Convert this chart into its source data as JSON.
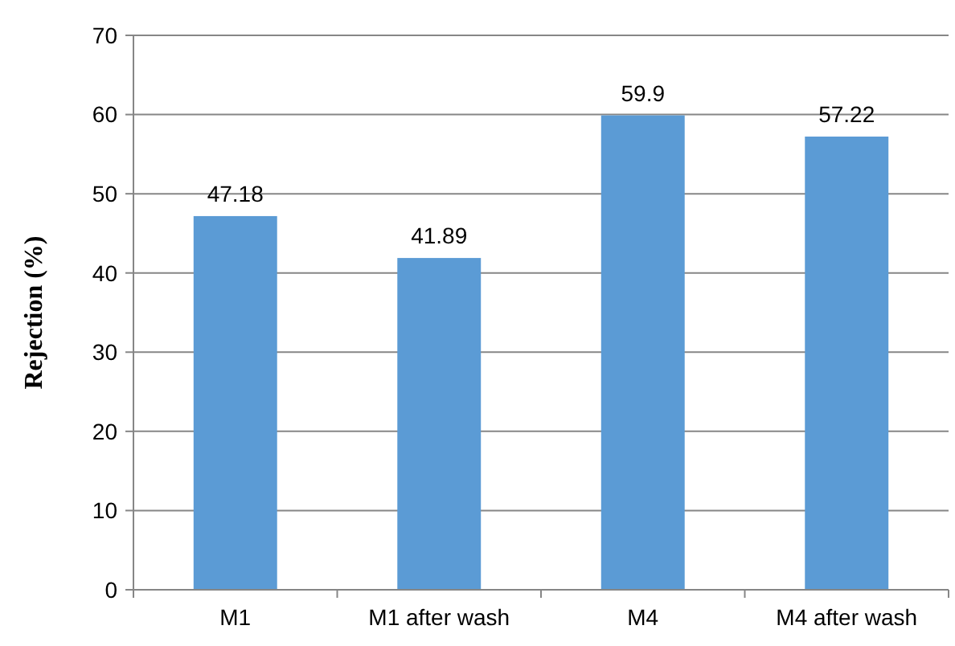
{
  "chart_data": {
    "type": "bar",
    "ylabel": "Rejection (%)",
    "categories": [
      "M1",
      "M1 after wash",
      "M4",
      "M4 after wash"
    ],
    "values": [
      47.18,
      41.89,
      59.9,
      57.22
    ],
    "color": "#5b9bd5",
    "value_labels": [
      "47.18",
      "41.89",
      "59.9",
      "57.22"
    ],
    "ylim": [
      0,
      70
    ],
    "yticks": [
      0,
      10,
      20,
      30,
      40,
      50,
      60,
      70
    ],
    "grid": "y"
  }
}
